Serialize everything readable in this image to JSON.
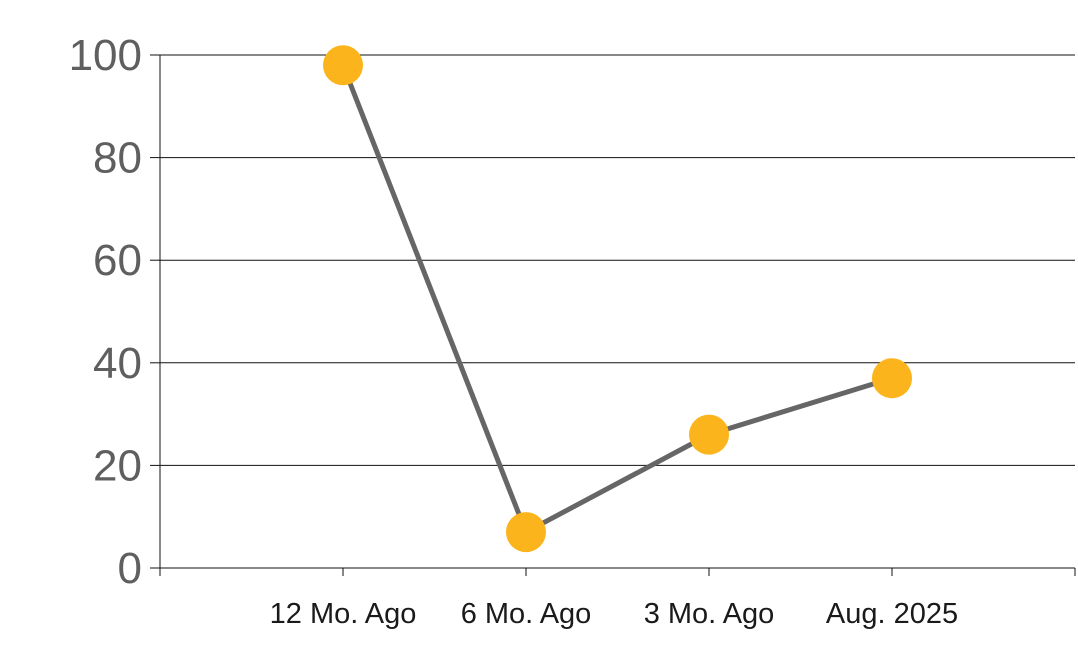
{
  "chart_data": {
    "type": "line",
    "categories": [
      "12 Mo. Ago",
      "6 Mo. Ago",
      "3 Mo. Ago",
      "Aug. 2025"
    ],
    "series": [
      {
        "values": [
          98,
          7,
          26,
          37
        ]
      }
    ],
    "title": "",
    "xlabel": "",
    "ylabel": "",
    "ylim": [
      0,
      100
    ],
    "yticks": [
      0,
      20,
      40,
      60,
      80,
      100
    ],
    "ytick_labels": [
      "0",
      "20",
      "40",
      "60",
      "80",
      "100"
    ],
    "grid": true,
    "legend": "none",
    "colors": {
      "line": "#666666",
      "marker": "#FBB41B",
      "grid": "#111111",
      "axis_text": "#5f5f5f",
      "category_text": "#1a1a1a"
    }
  }
}
